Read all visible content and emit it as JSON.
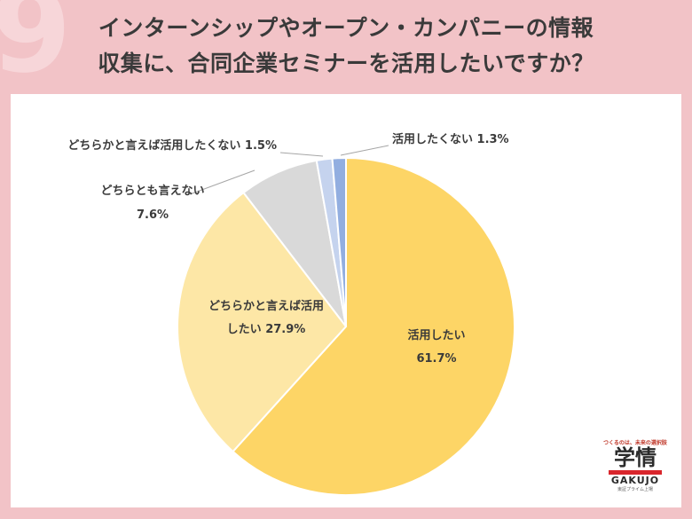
{
  "title_lines": [
    "インターンシップやオープン・カンパニーの情報",
    "収集に、合同企業セミナーを活用したいですか？"
  ],
  "chart_data": {
    "type": "pie",
    "start": "12 o'clock, clockwise",
    "slices": [
      {
        "label": "活用したい",
        "value": 61.7,
        "color": "#fdd566",
        "text": "61.7%"
      },
      {
        "label": "どちらかと言えば活用したい",
        "value": 27.9,
        "color": "#fde7a6",
        "text": "27.9%"
      },
      {
        "label": "どちらとも言えない",
        "value": 7.6,
        "color": "#d9d9d9",
        "text": "7.6%"
      },
      {
        "label": "どちらかと言えば活用したくない",
        "value": 1.5,
        "color": "#c5d3ee",
        "text": "1.5%"
      },
      {
        "label": "活用したくない",
        "value": 1.3,
        "color": "#92aee0",
        "text": "1.3%"
      }
    ],
    "label_lines": [
      [
        "活用したい",
        "61.7%"
      ],
      [
        "どちらかと言えば活用",
        "したい 27.9%"
      ],
      [
        "どちらとも言えない",
        "7.6%"
      ],
      [
        "どちらかと言えば活用したくない 1.5%"
      ],
      [
        "活用したくない 1.3%"
      ]
    ]
  },
  "brand": {
    "tagline": "つくるのは、未来の選択肢",
    "name_jp": "学情",
    "name_en": "GAKUJO",
    "sub": "東証プライム上場"
  }
}
